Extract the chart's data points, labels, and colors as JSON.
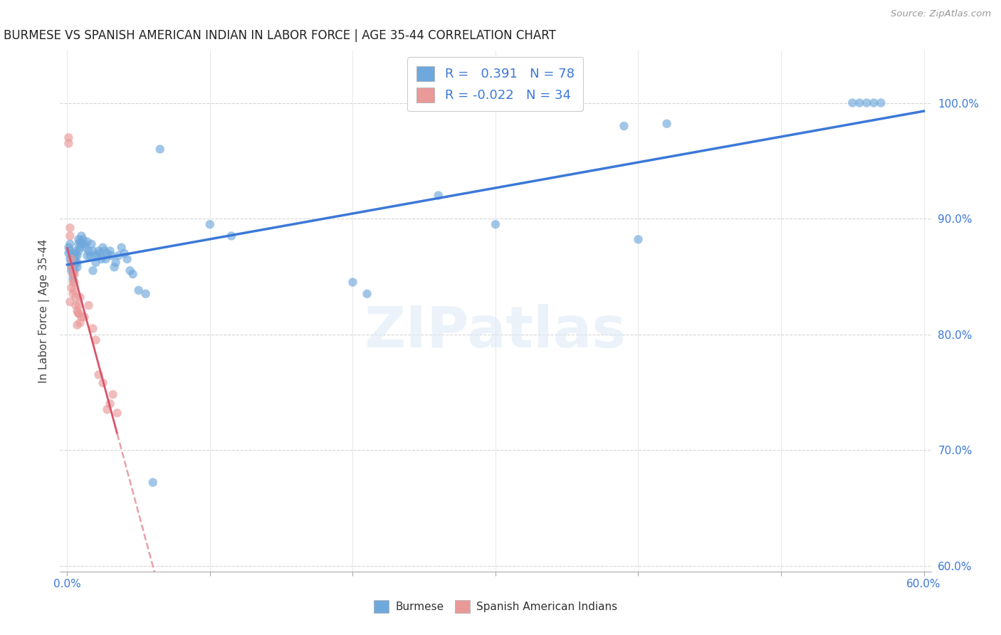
{
  "title": "BURMESE VS SPANISH AMERICAN INDIAN IN LABOR FORCE | AGE 35-44 CORRELATION CHART",
  "source": "Source: ZipAtlas.com",
  "ylabel": "In Labor Force | Age 35-44",
  "xlim": [
    -0.005,
    0.605
  ],
  "ylim": [
    0.595,
    1.045
  ],
  "yticks_right": [
    0.6,
    0.7,
    0.8,
    0.9,
    1.0
  ],
  "ytick_right_labels": [
    "60.0%",
    "70.0%",
    "80.0%",
    "90.0%",
    "100.0%"
  ],
  "burmese_color": "#6fa8dc",
  "spanish_color": "#ea9999",
  "trend_blue": "#3c78d8",
  "trend_pink_solid": "#d9536a",
  "trend_pink_dash": "#e8a0a8",
  "R_blue": 0.391,
  "N_blue": 78,
  "R_pink": -0.022,
  "N_pink": 34,
  "blue_x": [
    0.001,
    0.001,
    0.002,
    0.002,
    0.002,
    0.003,
    0.003,
    0.003,
    0.003,
    0.004,
    0.004,
    0.004,
    0.004,
    0.005,
    0.005,
    0.005,
    0.005,
    0.006,
    0.006,
    0.006,
    0.007,
    0.007,
    0.007,
    0.008,
    0.008,
    0.008,
    0.009,
    0.009,
    0.01,
    0.01,
    0.011,
    0.012,
    0.013,
    0.014,
    0.014,
    0.015,
    0.016,
    0.017,
    0.018,
    0.018,
    0.019,
    0.02,
    0.021,
    0.022,
    0.023,
    0.024,
    0.025,
    0.026,
    0.027,
    0.028,
    0.03,
    0.031,
    0.033,
    0.034,
    0.036,
    0.038,
    0.04,
    0.042,
    0.044,
    0.046,
    0.05,
    0.055,
    0.06,
    0.065,
    0.1,
    0.115,
    0.2,
    0.21,
    0.26,
    0.3,
    0.39,
    0.4,
    0.42,
    0.55,
    0.555,
    0.56,
    0.565,
    0.57
  ],
  "blue_y": [
    0.87,
    0.875,
    0.865,
    0.872,
    0.878,
    0.855,
    0.858,
    0.862,
    0.867,
    0.848,
    0.852,
    0.856,
    0.86,
    0.855,
    0.86,
    0.865,
    0.87,
    0.862,
    0.868,
    0.872,
    0.858,
    0.862,
    0.868,
    0.872,
    0.878,
    0.882,
    0.875,
    0.88,
    0.878,
    0.885,
    0.882,
    0.878,
    0.875,
    0.868,
    0.88,
    0.872,
    0.868,
    0.878,
    0.872,
    0.855,
    0.868,
    0.862,
    0.868,
    0.872,
    0.87,
    0.865,
    0.875,
    0.872,
    0.865,
    0.87,
    0.872,
    0.868,
    0.858,
    0.862,
    0.868,
    0.875,
    0.87,
    0.865,
    0.855,
    0.852,
    0.838,
    0.835,
    0.672,
    0.96,
    0.895,
    0.885,
    0.845,
    0.835,
    0.92,
    0.895,
    0.98,
    0.882,
    0.982,
    1.0,
    1.0,
    1.0,
    1.0,
    1.0
  ],
  "pink_x": [
    0.001,
    0.001,
    0.002,
    0.002,
    0.003,
    0.003,
    0.004,
    0.004,
    0.005,
    0.005,
    0.006,
    0.007,
    0.008,
    0.008,
    0.009,
    0.01,
    0.012,
    0.015,
    0.018,
    0.02,
    0.022,
    0.025,
    0.028,
    0.03,
    0.032,
    0.035,
    0.002,
    0.003,
    0.004,
    0.005,
    0.006,
    0.007,
    0.008,
    0.009
  ],
  "pink_y": [
    0.965,
    0.97,
    0.885,
    0.892,
    0.858,
    0.865,
    0.845,
    0.852,
    0.845,
    0.852,
    0.825,
    0.808,
    0.818,
    0.825,
    0.832,
    0.815,
    0.815,
    0.825,
    0.805,
    0.795,
    0.765,
    0.758,
    0.735,
    0.74,
    0.748,
    0.732,
    0.828,
    0.84,
    0.835,
    0.838,
    0.832,
    0.82,
    0.818,
    0.81
  ],
  "watermark": "ZIPatlas",
  "background_color": "#ffffff",
  "grid_color": "#cccccc"
}
